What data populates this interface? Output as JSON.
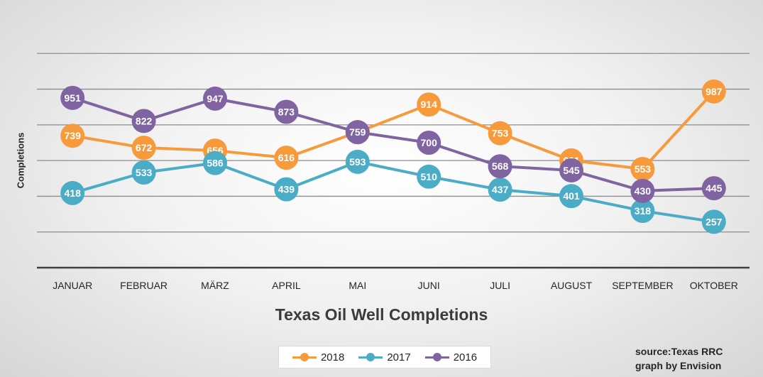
{
  "chart_data": {
    "type": "line",
    "title": "Texas Oil Well Completions",
    "xlabel": "",
    "ylabel": "Completions",
    "categories": [
      "JANUAR",
      "FEBRUAR",
      "MÄRZ",
      "APRIL",
      "MAI",
      "JUNI",
      "JULI",
      "AUGUST",
      "SEPTEMBER",
      "OKTOBER"
    ],
    "ylim": [
      0,
      1400
    ],
    "grid": true,
    "legend_position": "bottom",
    "series": [
      {
        "name": "2018",
        "color": "#f79a3c",
        "values": [
          739,
          672,
          656,
          616,
          759,
          914,
          753,
          601,
          553,
          987
        ]
      },
      {
        "name": "2017",
        "color": "#4bacc6",
        "values": [
          418,
          533,
          586,
          439,
          593,
          510,
          437,
          401,
          318,
          257
        ]
      },
      {
        "name": "2016",
        "color": "#8064a2",
        "values": [
          951,
          822,
          947,
          873,
          759,
          700,
          568,
          545,
          430,
          445
        ]
      }
    ]
  },
  "source": {
    "line1": "source:Texas RRC",
    "line2": "graph by Envision"
  }
}
